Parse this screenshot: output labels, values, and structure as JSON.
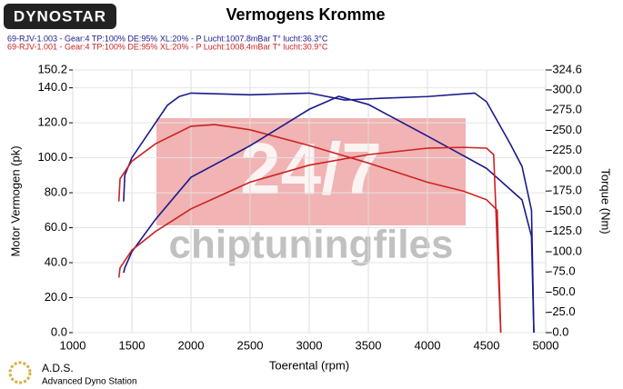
{
  "chart_data": {
    "type": "line",
    "title": "Vermogens Kromme",
    "logo": "DYNOSTAR",
    "footer": [
      "A.D.S.",
      "Advanced Dyno Station"
    ],
    "watermark": [
      "24/7",
      "chiptuningfiles"
    ],
    "legend": [
      {
        "text": "69-RJV-1.003 - Gear:4 TP:100% DE:95% XL:20%   - P Lucht:1007.8mBar T° lucht:36.3°C",
        "color": "#1a1a8c"
      },
      {
        "text": "69-RJV-1.001 - Gear:4 TP:100% DE:95% XL:20%   - P Lucht:1008.4mBar T° lucht:30.9°C",
        "color": "#cc2222"
      }
    ],
    "x_label": "Toerental (rpm)",
    "y_label": "Motor Vermogen (pk)",
    "y2_label": "Torque (Nm)",
    "xlim": [
      1000,
      5000
    ],
    "xticks": [
      1000,
      1500,
      2000,
      2500,
      3000,
      3500,
      4000,
      4500,
      5000
    ],
    "ylim": [
      0,
      150.2
    ],
    "yticks": [
      {
        "value": 0,
        "label": "0.0"
      },
      {
        "value": 20,
        "label": "20.0"
      },
      {
        "value": 40,
        "label": "40.0"
      },
      {
        "value": 60,
        "label": "60.0"
      },
      {
        "value": 80,
        "label": "80.0"
      },
      {
        "value": 100,
        "label": "100.0"
      },
      {
        "value": 120,
        "label": "120.0"
      },
      {
        "value": 140,
        "label": "140.0"
      },
      {
        "value": 150.2,
        "label": "150.2"
      }
    ],
    "y2lim": [
      0,
      324.6
    ],
    "y2ticks": [
      {
        "value": 0,
        "label": "-0.0"
      },
      {
        "value": 25,
        "label": "-25.0"
      },
      {
        "value": 50,
        "label": "-50.0"
      },
      {
        "value": 75,
        "label": "-75.0"
      },
      {
        "value": 100,
        "label": "-100.0"
      },
      {
        "value": 125,
        "label": "-125.0"
      },
      {
        "value": 150,
        "label": "-150.0"
      },
      {
        "value": 175,
        "label": "-175.0"
      },
      {
        "value": 200,
        "label": "-200.0"
      },
      {
        "value": 225,
        "label": "-225.0"
      },
      {
        "value": 250,
        "label": "-250.0"
      },
      {
        "value": 275,
        "label": "-275.0"
      },
      {
        "value": 300,
        "label": "-300.0"
      },
      {
        "value": 324.6,
        "label": "-324.6"
      }
    ],
    "grid": true,
    "series": [
      {
        "color": "#1a1a8c",
        "axis": "y",
        "x": [
          1430,
          1440,
          1500,
          1600,
          1700,
          1800,
          1900,
          2000,
          2500,
          3000,
          3300,
          3600,
          4000,
          4400,
          4500,
          4600,
          4700,
          4800,
          4880,
          4900
        ],
        "values": [
          75,
          90,
          100,
          110,
          120,
          130,
          135,
          137,
          136,
          137,
          133,
          134,
          135,
          137,
          132,
          120,
          108,
          95,
          70,
          0
        ]
      },
      {
        "color": "#cc2222",
        "axis": "y",
        "x": [
          1390,
          1400,
          1500,
          1700,
          2000,
          2200,
          2500,
          3000,
          3500,
          4000,
          4300,
          4500,
          4590,
          4620
        ],
        "values": [
          75,
          88,
          98,
          108,
          118,
          119,
          116,
          107,
          97,
          86,
          81,
          76,
          70,
          0
        ]
      },
      {
        "color": "#1a1a8c",
        "axis": "y2",
        "x": [
          1430,
          1440,
          1500,
          1700,
          2000,
          2500,
          3000,
          3250,
          3500,
          4000,
          4500,
          4800,
          4880,
          4900
        ],
        "values": [
          74,
          80,
          100,
          140,
          192,
          231,
          276,
          292,
          282,
          243,
          203,
          164,
          119,
          0
        ]
      },
      {
        "color": "#cc2222",
        "axis": "y2",
        "x": [
          1390,
          1400,
          1500,
          1700,
          2000,
          2500,
          3000,
          3500,
          4000,
          4300,
          4500,
          4560,
          4600,
          4620
        ],
        "values": [
          68,
          80,
          102,
          125,
          153,
          186,
          207,
          220,
          228,
          229,
          228,
          220,
          74,
          0
        ]
      }
    ]
  }
}
